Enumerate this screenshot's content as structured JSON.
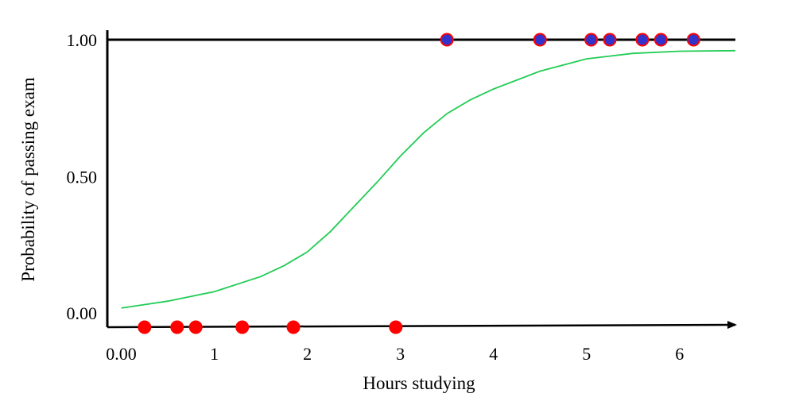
{
  "chart_data": {
    "type": "scatter",
    "title": "",
    "xlabel": "Hours studying",
    "ylabel": "Probability of passing exam",
    "xlim": [
      -0.15,
      6.6
    ],
    "ylim": [
      -0.05,
      1.0
    ],
    "grid": false,
    "x_ticks": [
      {
        "value": 0,
        "label": "0.00"
      },
      {
        "value": 1,
        "label": "1"
      },
      {
        "value": 2,
        "label": "2"
      },
      {
        "value": 3,
        "label": "3"
      },
      {
        "value": 4,
        "label": "4"
      },
      {
        "value": 5,
        "label": "5"
      },
      {
        "value": 6,
        "label": "6"
      }
    ],
    "y_ticks": [
      {
        "value": 0,
        "label": "0.00"
      },
      {
        "value": 0.5,
        "label": "0.50"
      },
      {
        "value": 1,
        "label": "1.00"
      }
    ],
    "series": [
      {
        "kind": "points",
        "color": "#ff0000",
        "outline": "#ff0000",
        "x": [
          0.25,
          0.6,
          0.8,
          1.3,
          1.85,
          2.95
        ],
        "y": [
          -0.05,
          -0.05,
          -0.05,
          -0.05,
          -0.05,
          -0.05
        ]
      },
      {
        "kind": "points",
        "color": "#3333cc",
        "outline": "#ff0000",
        "x": [
          3.5,
          4.5,
          5.05,
          5.25,
          5.6,
          5.8,
          6.15
        ],
        "y": [
          1,
          1,
          1,
          1,
          1,
          1,
          1
        ]
      },
      {
        "kind": "line",
        "color": "#22cc55",
        "x": [
          0.0,
          0.5,
          1.0,
          1.5,
          1.75,
          2.0,
          2.25,
          2.5,
          2.75,
          3.0,
          3.25,
          3.5,
          3.75,
          4.0,
          4.5,
          5.0,
          5.5,
          6.0,
          6.6
        ],
        "y": [
          0.02,
          0.045,
          0.08,
          0.135,
          0.175,
          0.225,
          0.3,
          0.39,
          0.48,
          0.575,
          0.66,
          0.73,
          0.78,
          0.82,
          0.885,
          0.93,
          0.95,
          0.958,
          0.96
        ]
      }
    ]
  }
}
